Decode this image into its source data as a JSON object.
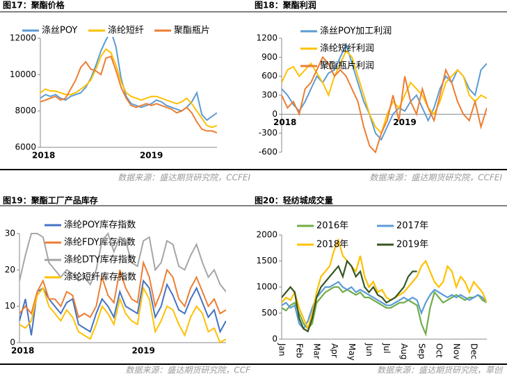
{
  "chart_data": [
    {
      "type": "line",
      "title": "图17：聚酯价格",
      "source": "数据来源：盛达期货研究院，CCFEI",
      "categories": [
        "2018",
        null,
        null,
        null,
        null,
        null,
        null,
        null,
        null,
        null,
        null,
        null,
        null,
        null,
        null,
        null,
        null,
        null,
        null,
        null,
        null,
        null,
        "2019",
        null,
        null,
        null,
        null,
        null,
        null,
        null,
        null,
        null,
        null,
        null,
        null,
        null
      ],
      "ylim": [
        6000,
        12000
      ],
      "yticks": [
        6000,
        8000,
        10000,
        12000
      ],
      "series": [
        {
          "name": "涤丝POY",
          "color": "#5b9bd5",
          "values": [
            8700,
            8900,
            8800,
            8900,
            8700,
            8600,
            8800,
            8900,
            9000,
            9300,
            9800,
            10500,
            11300,
            11900,
            12400,
            11500,
            9800,
            8800,
            8400,
            8300,
            8200,
            8300,
            8400,
            8600,
            8500,
            8300,
            8200,
            8100,
            8000,
            8200,
            8500,
            9000,
            7800,
            7500,
            7700,
            7900
          ]
        },
        {
          "name": "涤纶短纤",
          "color": "#ffc000",
          "values": [
            9000,
            9200,
            9100,
            9100,
            9000,
            8900,
            8900,
            9000,
            9200,
            9400,
            9700,
            10300,
            11000,
            11400,
            11200,
            10500,
            9600,
            9000,
            8800,
            8700,
            8600,
            8700,
            8800,
            8800,
            8700,
            8600,
            8500,
            8400,
            8500,
            8700,
            8400,
            8000,
            7600,
            7200,
            7100,
            7200
          ]
        },
        {
          "name": "聚酯瓶片",
          "color": "#ed7d31",
          "values": [
            8500,
            8600,
            8700,
            8800,
            8600,
            8700,
            9200,
            9700,
            10400,
            10700,
            10300,
            10200,
            10000,
            10900,
            11000,
            10200,
            9300,
            8700,
            8300,
            8200,
            8300,
            8400,
            8300,
            8400,
            8300,
            8200,
            8100,
            7900,
            8000,
            8200,
            7900,
            7400,
            7000,
            6900,
            6900,
            6800
          ]
        }
      ]
    },
    {
      "type": "line",
      "title": "图18：聚酯利润",
      "source": "数据来源：盛达期货研究院，CCFEI",
      "categories": [
        "2018",
        null,
        null,
        null,
        null,
        null,
        null,
        null,
        null,
        null,
        null,
        null,
        null,
        null,
        null,
        null,
        null,
        null,
        null,
        null,
        null,
        "2019",
        null,
        null,
        null,
        null,
        null,
        null,
        null,
        null,
        null,
        null,
        null,
        null,
        null,
        null
      ],
      "ylim": [
        -600,
        1200
      ],
      "yticks": [
        -600,
        -300,
        0,
        300,
        600,
        900,
        1200
      ],
      "series": [
        {
          "name": "涤丝POY加工利润",
          "color": "#5b9bd5",
          "values": [
            400,
            300,
            150,
            50,
            200,
            400,
            600,
            500,
            650,
            700,
            900,
            1100,
            800,
            500,
            200,
            0,
            -300,
            -400,
            -200,
            0,
            100,
            50,
            200,
            300,
            100,
            -100,
            100,
            400,
            600,
            500,
            700,
            600,
            400,
            300,
            700,
            800
          ]
        },
        {
          "name": "涤纶短纤利润",
          "color": "#ffc000",
          "values": [
            500,
            700,
            750,
            600,
            700,
            800,
            650,
            500,
            300,
            600,
            800,
            1000,
            900,
            600,
            300,
            0,
            -200,
            -300,
            0,
            200,
            100,
            300,
            500,
            400,
            300,
            100,
            0,
            200,
            500,
            600,
            700,
            600,
            300,
            200,
            300,
            250
          ]
        },
        {
          "name": "聚酯瓶片利润",
          "color": "#ed7d31",
          "values": [
            300,
            100,
            200,
            0,
            400,
            500,
            700,
            900,
            800,
            600,
            700,
            600,
            400,
            200,
            -200,
            -500,
            -600,
            -300,
            -100,
            300,
            -100,
            600,
            200,
            0,
            400,
            100,
            -100,
            300,
            700,
            500,
            200,
            0,
            -100,
            200,
            -200,
            100
          ]
        }
      ]
    },
    {
      "type": "line",
      "title": "图19：聚酯工厂产品库存",
      "source": "数据来源：盛达期货研究院，CCF",
      "categories": [
        "2018",
        null,
        null,
        null,
        null,
        null,
        null,
        null,
        null,
        null,
        null,
        null,
        null,
        null,
        null,
        null,
        null,
        null,
        null,
        null,
        null,
        "2019",
        null,
        null,
        null,
        null,
        null,
        null,
        null,
        null,
        null,
        null,
        null,
        null,
        null,
        null
      ],
      "ylim": [
        0,
        30
      ],
      "yticks": [
        0,
        10,
        20,
        30
      ],
      "series": [
        {
          "name": "涤纶POY库存指数",
          "color": "#4472c4",
          "values": [
            6,
            12,
            2,
            14,
            15,
            12,
            10,
            8,
            11,
            12,
            5,
            4,
            3,
            8,
            12,
            10,
            7,
            14,
            10,
            9,
            8,
            17,
            15,
            7,
            10,
            16,
            13,
            9,
            8,
            12,
            15,
            11,
            7,
            9,
            3,
            6
          ]
        },
        {
          "name": "涤纶FDY库存指数",
          "color": "#ed7d31",
          "values": [
            8,
            10,
            8,
            14,
            17,
            12,
            12,
            10,
            14,
            13,
            7,
            8,
            7,
            10,
            18,
            13,
            11,
            20,
            15,
            12,
            11,
            22,
            18,
            10,
            14,
            20,
            18,
            12,
            10,
            15,
            18,
            14,
            10,
            12,
            8,
            9
          ]
        },
        {
          "name": "涤纶DTY库存指数",
          "color": "#a5a5a5",
          "values": [
            17,
            24,
            30,
            30,
            29,
            22,
            20,
            18,
            20,
            19,
            17,
            18,
            16,
            20,
            28,
            30,
            25,
            29,
            28,
            22,
            21,
            28,
            29,
            20,
            22,
            28,
            27,
            21,
            20,
            24,
            27,
            22,
            18,
            20,
            16,
            14
          ]
        },
        {
          "name": "涤纶短纤库存指数",
          "color": "#ffc000",
          "values": [
            5,
            4,
            6,
            13,
            15,
            10,
            8,
            6,
            9,
            7,
            3,
            2,
            1,
            5,
            10,
            8,
            5,
            12,
            8,
            6,
            5,
            15,
            12,
            3,
            6,
            10,
            9,
            5,
            2,
            7,
            10,
            8,
            3,
            4,
            0,
            1
          ]
        }
      ]
    },
    {
      "type": "line",
      "title": "图20：轻纺城成交量",
      "source": "数据来源：盛达期货研究院，草创",
      "categories": [
        "Jan",
        null,
        null,
        null,
        "Feb",
        null,
        null,
        null,
        "Mar",
        null,
        null,
        null,
        "Apr",
        null,
        null,
        null,
        "May",
        null,
        null,
        null,
        "Jun",
        null,
        null,
        null,
        "Jul",
        null,
        null,
        null,
        "Aug",
        null,
        null,
        null,
        "Sep",
        null,
        null,
        null,
        "Oct",
        null,
        null,
        null,
        "Nov",
        null,
        null,
        null,
        "Dec",
        null,
        null,
        null
      ],
      "ylim": [
        0,
        2000
      ],
      "yticks": [
        0,
        500,
        1000,
        1500,
        2000
      ],
      "series": [
        {
          "name": "2016年",
          "color": "#70ad47",
          "values": [
            600,
            550,
            650,
            700,
            500,
            300,
            200,
            300,
            700,
            800,
            900,
            950,
            1000,
            1000,
            900,
            950,
            900,
            850,
            900,
            800,
            800,
            750,
            700,
            650,
            600,
            600,
            650,
            700,
            700,
            750,
            700,
            650,
            300,
            100,
            600,
            900,
            800,
            700,
            750,
            800,
            850,
            800,
            750,
            800,
            800,
            850,
            750,
            700
          ]
        },
        {
          "name": "2017年",
          "color": "#5b9bd5",
          "values": [
            650,
            700,
            600,
            650,
            300,
            200,
            350,
            600,
            800,
            900,
            1000,
            1000,
            1050,
            1100,
            1000,
            950,
            1000,
            900,
            950,
            900,
            850,
            800,
            750,
            700,
            650,
            650,
            700,
            750,
            800,
            750,
            800,
            750,
            500,
            700,
            850,
            950,
            900,
            850,
            800,
            850,
            800,
            850,
            800,
            750,
            800,
            850,
            800,
            700
          ]
        },
        {
          "name": "2018年",
          "color": "#ffc000",
          "values": [
            700,
            800,
            750,
            900,
            600,
            400,
            200,
            500,
            900,
            1200,
            1300,
            1400,
            1700,
            1900,
            1600,
            1500,
            1400,
            1300,
            1600,
            1200,
            1000,
            1100,
            900,
            950,
            800,
            750,
            800,
            850,
            900,
            1000,
            1100,
            1200,
            1400,
            1500,
            1300,
            1100,
            1000,
            1100,
            1400,
            1300,
            1000,
            1200,
            1100,
            900,
            1100,
            1000,
            900,
            700
          ]
        },
        {
          "name": "2019年",
          "color": "#375623",
          "values": [
            800,
            900,
            1000,
            900,
            400,
            200,
            150,
            400,
            800,
            1000,
            1100,
            1200,
            1300,
            1400,
            1200,
            1500,
            1400,
            1200,
            1300,
            1000,
            900,
            1000,
            850,
            800,
            700,
            750,
            800,
            900,
            1000,
            1200,
            1300,
            1300,
            null,
            null,
            null,
            null,
            null,
            null,
            null,
            null,
            null,
            null,
            null,
            null,
            null,
            null,
            null,
            null
          ]
        }
      ]
    }
  ]
}
